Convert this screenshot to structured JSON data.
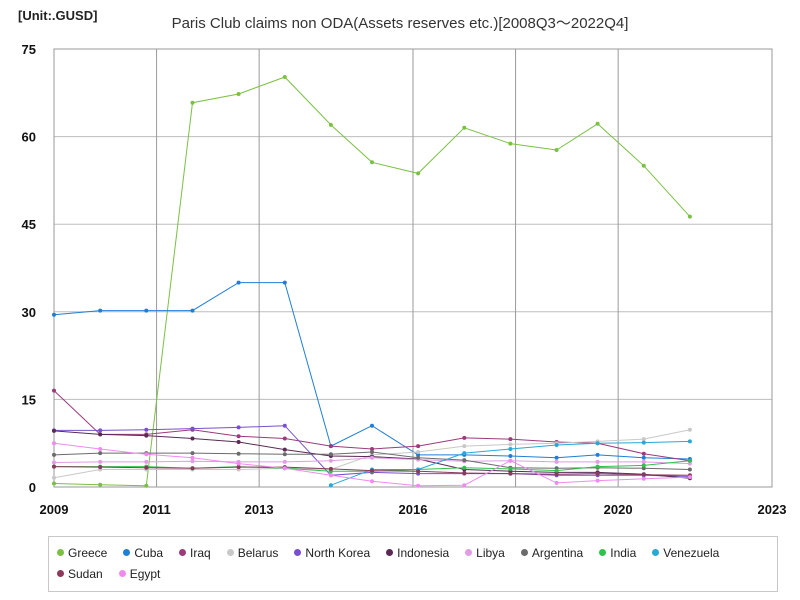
{
  "unit_label": "[Unit:.GUSD]",
  "chart_data": {
    "type": "line",
    "title": "Paris Club claims non ODA(Assets reserves etc.)[2008Q3～2022Q4]",
    "xlabel": "",
    "ylabel": "",
    "xlim": [
      2009,
      2023
    ],
    "ylim": [
      0,
      75
    ],
    "x_ticks": [
      2009,
      2011,
      2013,
      2016,
      2018,
      2020,
      2023
    ],
    "y_ticks": [
      0,
      15,
      30,
      45,
      60,
      75
    ],
    "grid": true,
    "legend_position": "bottom",
    "x": [
      2009.0,
      2009.9,
      2010.8,
      2011.7,
      2012.6,
      2013.5,
      2014.4,
      2015.2,
      2016.1,
      2017.0,
      2017.9,
      2018.8,
      2019.6,
      2020.5,
      2021.4,
      2022.3
    ],
    "series": [
      {
        "name": "Greece",
        "color": "#7bc043",
        "values": [
          0.6,
          0.4,
          0.2,
          65.8,
          67.3,
          70.2,
          62.0,
          55.6,
          53.7,
          61.5,
          58.8,
          57.7,
          62.2,
          55.0,
          46.3,
          null
        ]
      },
      {
        "name": "Cuba",
        "color": "#1f7fd6",
        "values": [
          29.5,
          30.2,
          30.2,
          30.2,
          35.0,
          35.0,
          7.0,
          10.5,
          5.5,
          5.5,
          5.3,
          5.0,
          5.5,
          5.0,
          4.8,
          null
        ]
      },
      {
        "name": "Iraq",
        "color": "#9b3a7d",
        "values": [
          16.5,
          9.0,
          9.0,
          9.8,
          8.7,
          8.3,
          7.0,
          6.5,
          7.0,
          8.4,
          8.2,
          7.7,
          7.5,
          5.7,
          4.5,
          null
        ]
      },
      {
        "name": "Belarus",
        "color": "#c8c8c8",
        "values": [
          1.6,
          3.0,
          3.0,
          3.0,
          3.0,
          3.2,
          3.0,
          5.5,
          6.0,
          7.0,
          7.3,
          7.5,
          7.8,
          8.2,
          9.8,
          null
        ]
      },
      {
        "name": "North Korea",
        "color": "#7a4fcf",
        "values": [
          9.7,
          9.7,
          9.8,
          10.0,
          10.2,
          10.5,
          2.0,
          2.5,
          2.3,
          2.3,
          2.3,
          2.0,
          2.0,
          2.0,
          1.8,
          null
        ]
      },
      {
        "name": "Indonesia",
        "color": "#5a2a55",
        "values": [
          9.6,
          9.0,
          8.8,
          8.3,
          7.7,
          6.4,
          5.3,
          5.2,
          4.8,
          3.0,
          2.7,
          2.5,
          2.5,
          2.2,
          1.5,
          null
        ]
      },
      {
        "name": "Libya",
        "color": "#e39be6",
        "values": [
          4.2,
          4.3,
          4.3,
          4.4,
          4.3,
          4.3,
          4.5,
          5.0,
          4.7,
          4.4,
          4.5,
          4.3,
          4.3,
          4.3,
          4.0,
          null
        ]
      },
      {
        "name": "Argentina",
        "color": "#6b6b6b",
        "values": [
          5.5,
          5.8,
          5.8,
          5.8,
          5.7,
          5.6,
          5.6,
          6.0,
          5.0,
          4.6,
          3.3,
          3.2,
          3.3,
          3.2,
          3.0,
          null
        ]
      },
      {
        "name": "India",
        "color": "#2ec24a",
        "values": [
          3.5,
          3.5,
          3.5,
          3.2,
          3.5,
          3.2,
          2.7,
          2.7,
          3.0,
          3.3,
          3.1,
          2.8,
          3.5,
          3.7,
          4.5,
          null
        ]
      },
      {
        "name": "Venezuela",
        "color": "#29a8d6",
        "values": [
          null,
          null,
          null,
          null,
          null,
          null,
          0.3,
          3.0,
          3.0,
          5.8,
          6.5,
          7.2,
          7.5,
          7.6,
          7.8,
          null
        ]
      },
      {
        "name": "Sudan",
        "color": "#8a3a5a",
        "values": [
          3.5,
          3.4,
          3.3,
          3.2,
          3.4,
          3.4,
          3.1,
          2.8,
          2.7,
          2.4,
          2.3,
          2.2,
          2.3,
          2.1,
          2.0,
          null
        ]
      },
      {
        "name": "Egypt",
        "color": "#f08af0",
        "values": [
          7.5,
          6.5,
          5.6,
          5.0,
          4.0,
          3.2,
          2.0,
          1.0,
          0.2,
          0.3,
          4.5,
          0.7,
          1.1,
          1.4,
          1.7,
          null
        ]
      }
    ]
  }
}
